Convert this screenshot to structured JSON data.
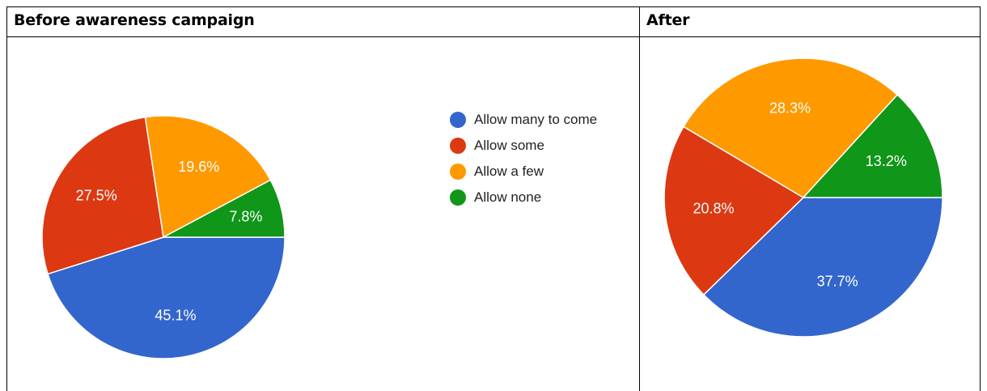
{
  "headers": {
    "left": "Before awareness campaign",
    "right": "After"
  },
  "colors": {
    "Allow many to come": "#3366cc",
    "Allow some": "#dc3912",
    "Allow a few": "#ff9900",
    "Allow none": "#109618",
    "slice_border": "#ffffff",
    "label_text": "#ffffff"
  },
  "legend": [
    "Allow many to come",
    "Allow some",
    "Allow a few",
    "Allow none"
  ],
  "chart_data": [
    {
      "type": "pie",
      "title": "Before awareness campaign",
      "categories": [
        "Allow many to come",
        "Allow some",
        "Allow a few",
        "Allow none"
      ],
      "values": [
        45.1,
        27.5,
        19.6,
        7.8
      ],
      "labels": [
        "45.1%",
        "27.5%",
        "19.6%",
        "7.8%"
      ],
      "legend_position": "right"
    },
    {
      "type": "pie",
      "title": "After",
      "categories": [
        "Allow many to come",
        "Allow some",
        "Allow a few",
        "Allow none"
      ],
      "values": [
        37.7,
        20.8,
        28.3,
        13.2
      ],
      "labels": [
        "37.7%",
        "20.8%",
        "28.3%",
        "13.2%"
      ]
    }
  ]
}
